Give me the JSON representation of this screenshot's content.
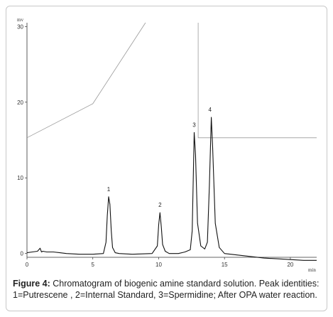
{
  "chart_data": {
    "type": "line",
    "y_unit": "mv",
    "x_unit": "min",
    "xlim": [
      0,
      22
    ],
    "ylim": [
      -0.5,
      30.5
    ],
    "x_ticks": [
      "0",
      "5",
      "10",
      "15",
      "20"
    ],
    "x_tick_values": [
      0,
      5,
      10,
      15,
      20
    ],
    "y_ticks": [
      "0",
      "10",
      "20",
      "30"
    ],
    "y_tick_values": [
      0,
      10,
      20,
      30
    ],
    "series": [
      {
        "values_x": [
          0,
          0.4,
          0.8,
          1.0,
          1.1,
          1.2,
          1.5,
          2.0,
          2.5,
          3.0,
          4.0,
          5.0,
          5.8,
          6.0,
          6.1,
          6.2,
          6.3,
          6.4,
          6.5,
          6.7,
          7.0,
          8.0,
          9.5,
          9.9,
          10.0,
          10.1,
          10.2,
          10.3,
          10.5,
          10.8,
          11.5,
          12.0,
          12.4,
          12.55,
          12.7,
          12.8,
          12.95,
          13.2,
          13.5,
          13.7,
          13.85,
          14.0,
          14.1,
          14.3,
          14.6,
          15.0,
          16.0,
          17.0,
          18.0,
          19.0,
          20.0,
          21.0,
          22.0
        ],
        "values_y": [
          0.1,
          0.2,
          0.3,
          0.7,
          0.2,
          0.3,
          0.2,
          0.2,
          0.1,
          0.0,
          -0.1,
          -0.1,
          0.0,
          1.5,
          5.0,
          7.5,
          6.5,
          3.0,
          0.8,
          0.1,
          0.0,
          -0.1,
          0.0,
          1.0,
          3.8,
          5.4,
          3.5,
          1.2,
          0.3,
          0.0,
          0.0,
          0.2,
          0.5,
          3.0,
          16.0,
          13.0,
          4.0,
          1.0,
          0.6,
          1.5,
          9.0,
          18.0,
          14.0,
          4.0,
          0.8,
          0.0,
          -0.2,
          -0.4,
          -0.6,
          -0.7,
          -0.8,
          -0.9,
          -0.9
        ]
      }
    ],
    "peaks": [
      {
        "label": "1",
        "x": 6.2,
        "y": 7.5
      },
      {
        "label": "2",
        "x": 10.1,
        "y": 5.4
      },
      {
        "label": "3",
        "x": 12.7,
        "y": 16.0
      },
      {
        "label": "4",
        "x": 13.9,
        "y": 18.0
      }
    ],
    "gradient_program": {
      "values_x": [
        0,
        5.0,
        9.0
      ],
      "values_y": [
        15.3,
        19.8,
        30.5
      ],
      "step_x": 13.0,
      "step_y_high": 30.5,
      "step_y_low": 15.3,
      "step_end_x": 22.0
    }
  },
  "caption": {
    "label": "Figure 4:",
    "text": " Chromatogram of biogenic amine standard solution. Peak identities: 1=Putrescene , 2=Internal Standard, 3=Spermidine; After OPA water reaction."
  }
}
